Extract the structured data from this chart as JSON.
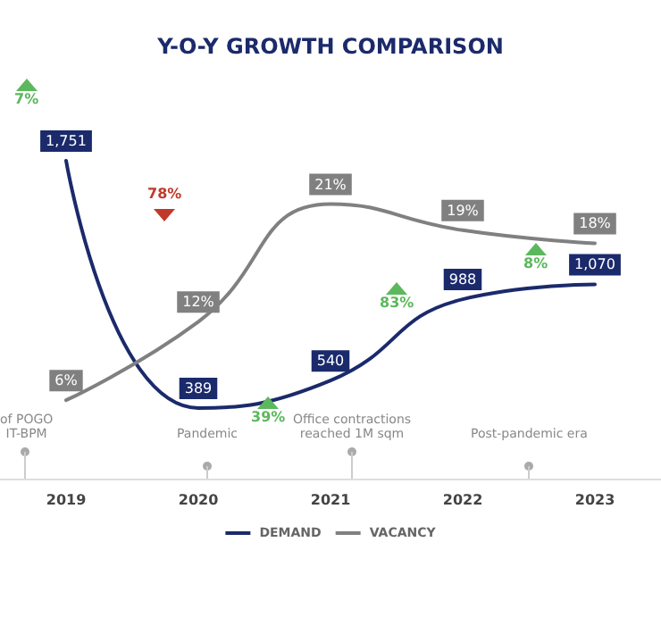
{
  "chart_data": {
    "type": "line",
    "title": "Y-O-Y GROWTH COMPARISON",
    "categories": [
      "2019",
      "2020",
      "2021",
      "2022",
      "2023"
    ],
    "series": [
      {
        "name": "DEMAND",
        "color": "#1b2a6b",
        "values": [
          1751,
          389,
          540,
          988,
          1070
        ],
        "value_labels": [
          "1,751",
          "389",
          "540",
          "988",
          "1,070"
        ]
      },
      {
        "name": "VACANCY",
        "color": "#808080",
        "values": [
          6,
          12,
          21,
          19,
          18
        ],
        "axis": "y2",
        "value_labels": [
          "6%",
          "12%",
          "21%",
          "19%",
          "18%"
        ]
      }
    ],
    "annotations": [
      "7%",
      "78%",
      "39%",
      "83%",
      "8%",
      "of POGO\nIT-BPM",
      "Pandemic",
      "Office contractions\nreached 1M sqm",
      "Post-pandemic era"
    ],
    "legend": "bottom",
    "grid": false,
    "marker": "none",
    "line_style": "solid"
  }
}
